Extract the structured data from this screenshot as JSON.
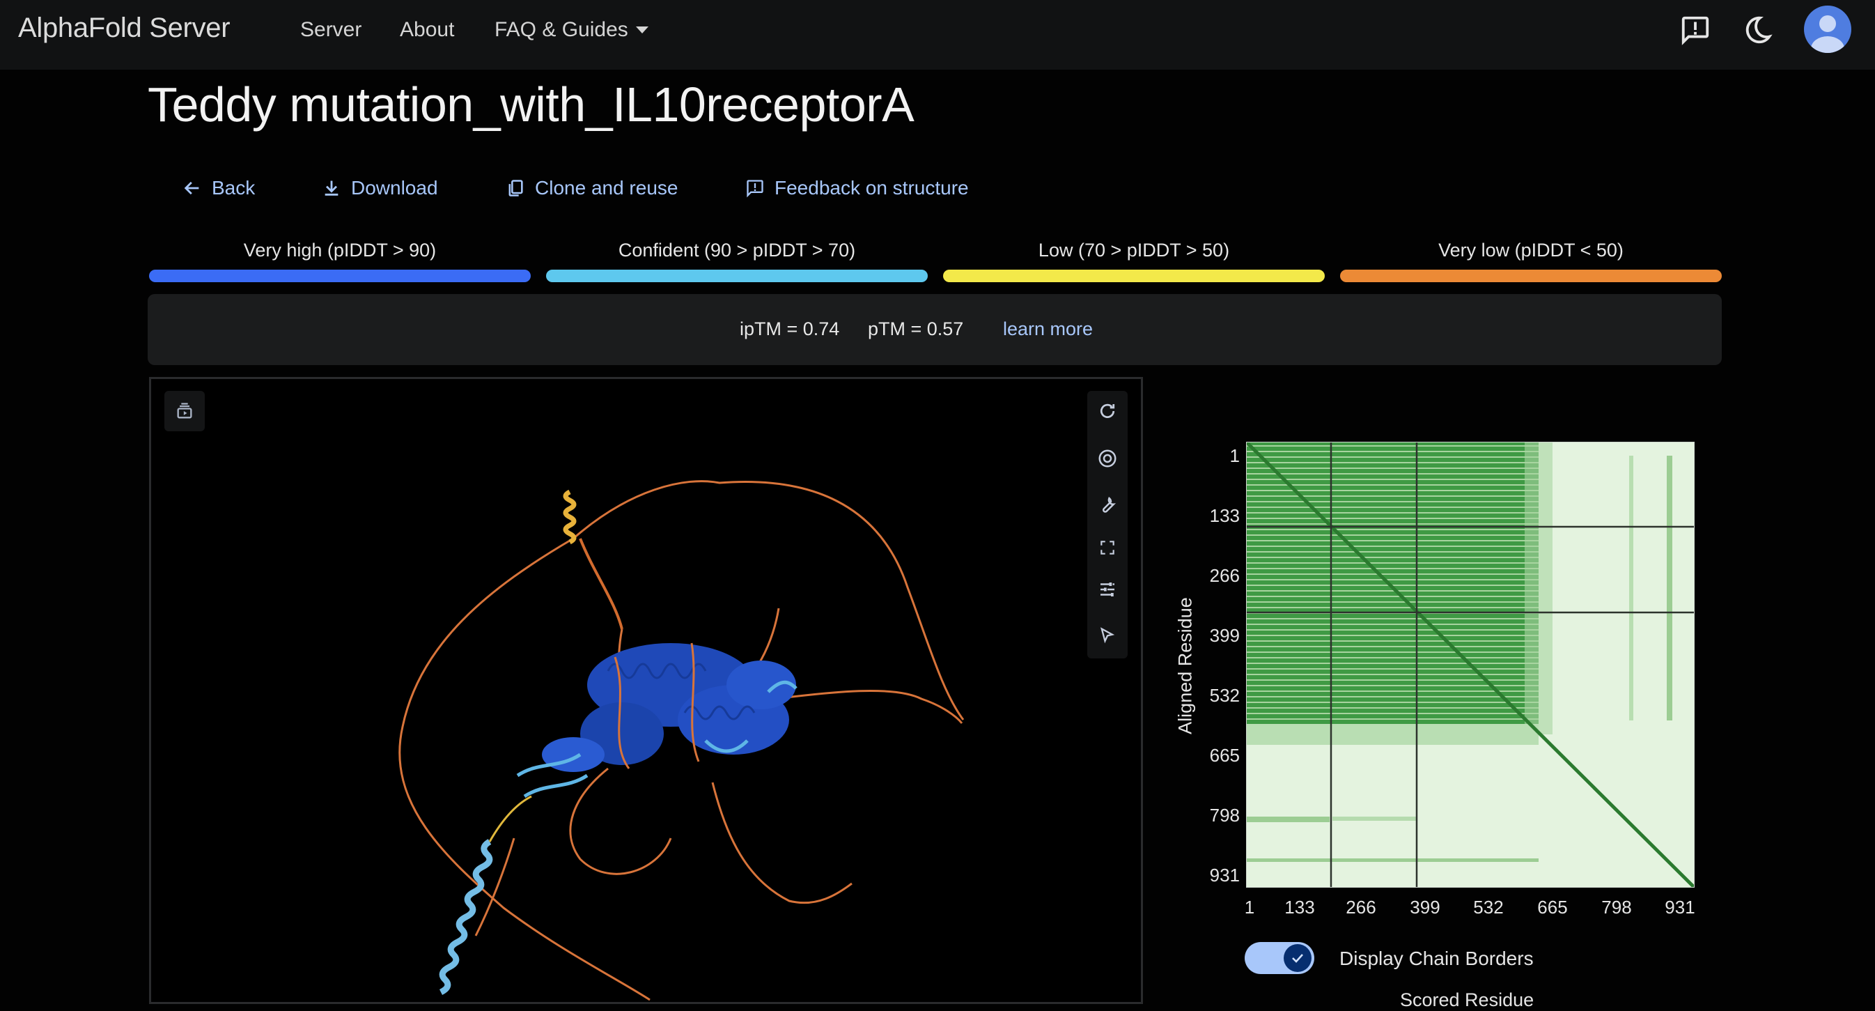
{
  "header": {
    "brand": "AlphaFold Server",
    "nav": [
      "Server",
      "About",
      "FAQ & Guides"
    ],
    "icons": [
      "feedback-icon",
      "dark-mode-icon",
      "avatar"
    ]
  },
  "page": {
    "title": "Teddy mutation_with_IL10receptorA"
  },
  "actions": {
    "back": "Back",
    "download": "Download",
    "clone": "Clone and reuse",
    "feedback": "Feedback on structure"
  },
  "legend": [
    {
      "label": "Very high (pIDDT > 90)",
      "color": "#3b6cf5"
    },
    {
      "label": "Confident (90 > pIDDT > 70)",
      "color": "#5ec8ee"
    },
    {
      "label": "Low (70 > pIDDT > 50)",
      "color": "#f3e94a"
    },
    {
      "label": "Very low (pIDDT < 50)",
      "color": "#ec8a36"
    }
  ],
  "scores": {
    "iptm": "ipTM = 0.74",
    "ptm": "pTM = 0.57",
    "learn_more": "learn more"
  },
  "pae": {
    "y_label": "Aligned Residue",
    "x_label_partial": "Scored Residue",
    "ticks": [
      "1",
      "133",
      "266",
      "399",
      "532",
      "665",
      "798",
      "931"
    ]
  },
  "toggle": {
    "label": "Display Chain Borders",
    "checked": true
  }
}
